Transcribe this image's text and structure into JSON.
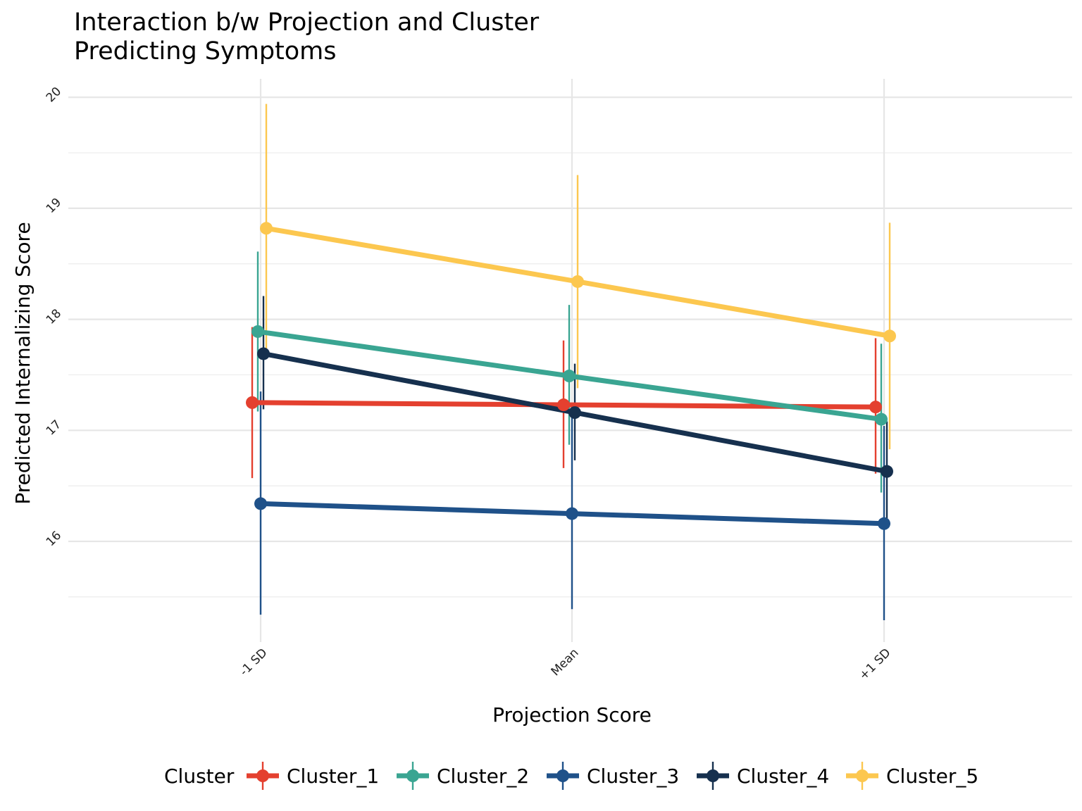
{
  "chart_data": {
    "type": "line",
    "title_lines": [
      "Interaction b/w Projection and Cluster",
      "Predicting Symptoms"
    ],
    "xlabel": "Projection Score",
    "ylabel": "Predicted Internalizing Score",
    "categories": [
      "-1 SD",
      "Mean",
      "+1 SD"
    ],
    "ylim": [
      15.45,
      20.1
    ],
    "yticks": [
      "16",
      "17",
      "18",
      "19",
      "20"
    ],
    "grid": true,
    "error_bars": true,
    "legend": {
      "title": "Cluster",
      "position": "bottom"
    },
    "series": [
      {
        "name": "Cluster_1",
        "color": "#E4402F",
        "values": [
          17.25,
          17.23,
          17.21
        ],
        "lower": [
          16.57,
          16.66,
          16.61
        ],
        "upper": [
          17.93,
          17.81,
          17.83
        ]
      },
      {
        "name": "Cluster_2",
        "color": "#3AA592",
        "values": [
          17.89,
          17.49,
          17.1
        ],
        "lower": [
          17.17,
          16.87,
          16.44
        ],
        "upper": [
          18.61,
          18.13,
          17.78
        ]
      },
      {
        "name": "Cluster_3",
        "color": "#1F5189",
        "values": [
          16.34,
          16.25,
          16.16
        ],
        "lower": [
          15.34,
          15.39,
          15.29
        ],
        "upper": [
          17.35,
          17.13,
          17.04
        ]
      },
      {
        "name": "Cluster_4",
        "color": "#16304E",
        "values": [
          17.69,
          17.16,
          16.63
        ],
        "lower": [
          17.19,
          16.73,
          16.19
        ],
        "upper": [
          18.21,
          17.6,
          17.08
        ]
      },
      {
        "name": "Cluster_5",
        "color": "#FCC74F",
        "values": [
          18.82,
          18.34,
          17.85
        ],
        "lower": [
          17.72,
          17.38,
          16.83
        ],
        "upper": [
          19.94,
          19.3,
          18.87
        ]
      }
    ]
  }
}
